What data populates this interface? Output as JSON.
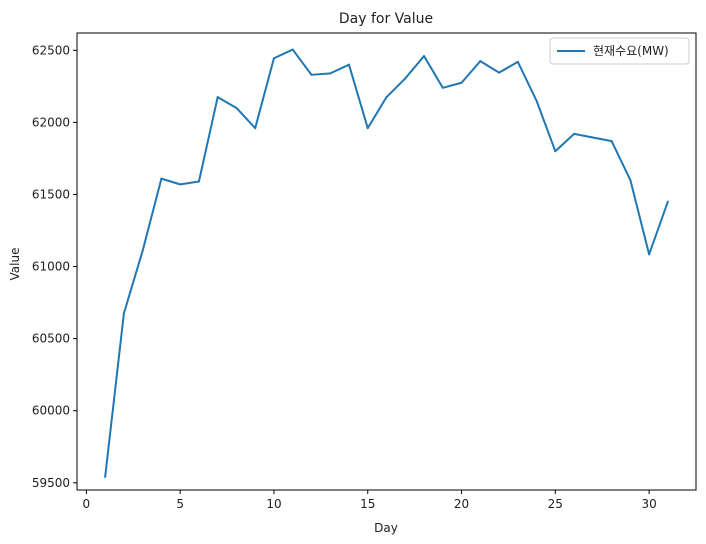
{
  "chart_data": {
    "type": "line",
    "title": "Day for Value",
    "xlabel": "Day",
    "ylabel": "Value",
    "xlim": [
      -0.5,
      32.5
    ],
    "ylim": [
      59450,
      62620
    ],
    "xticks": [
      0,
      5,
      10,
      15,
      20,
      25,
      30
    ],
    "yticks": [
      59500,
      60000,
      60500,
      61000,
      61500,
      62000,
      62500
    ],
    "grid": false,
    "legend_position": "top-right",
    "series": [
      {
        "name": "현재수요(MW)",
        "color": "#1f77b4",
        "x": [
          1,
          2,
          3,
          4,
          5,
          6,
          7,
          8,
          9,
          10,
          11,
          12,
          13,
          14,
          15,
          16,
          17,
          18,
          19,
          20,
          21,
          22,
          23,
          24,
          25,
          26,
          27,
          28,
          29,
          30,
          31
        ],
        "y": [
          59540,
          60675,
          61110,
          61610,
          61570,
          61590,
          62175,
          62100,
          61960,
          62445,
          62505,
          62330,
          62340,
          62400,
          61960,
          62175,
          62305,
          62460,
          62240,
          62275,
          62425,
          62345,
          62420,
          62150,
          61800,
          61920,
          61895,
          61870,
          61600,
          61085,
          61450
        ]
      }
    ]
  }
}
